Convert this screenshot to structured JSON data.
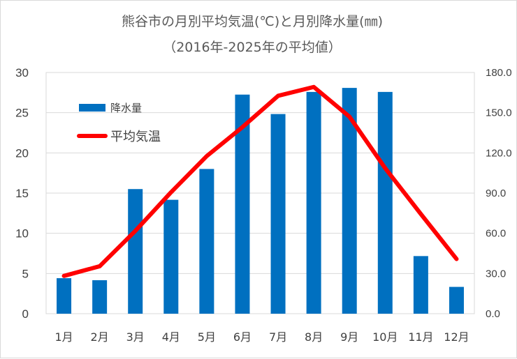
{
  "chart_data": {
    "type": "bar+line",
    "title": "熊谷市の月別平均気温(℃)と月別降水量(㎜)",
    "subtitle": "（2016年-2025年の平均値）",
    "categories": [
      "1月",
      "2月",
      "3月",
      "4月",
      "5月",
      "6月",
      "7月",
      "8月",
      "9月",
      "10月",
      "11月",
      "12月"
    ],
    "series": [
      {
        "name": "降水量",
        "type": "bar",
        "axis": "right",
        "color": "#0070c0",
        "values": [
          26.5,
          25.0,
          93.0,
          85.0,
          108.0,
          163.5,
          149.0,
          165.5,
          168.5,
          165.5,
          43.0,
          20.0
        ]
      },
      {
        "name": "平均気温",
        "type": "line",
        "axis": "left",
        "color": "#ff0000",
        "values": [
          4.7,
          5.9,
          10.3,
          15.1,
          19.6,
          23.2,
          27.1,
          28.2,
          24.5,
          18.1,
          12.4,
          6.8
        ]
      }
    ],
    "y_left": {
      "min": 0,
      "max": 30,
      "ticks": [
        "0",
        "5",
        "10",
        "15",
        "20",
        "25",
        "30"
      ]
    },
    "y_right": {
      "min": 0,
      "max": 180,
      "ticks": [
        "0.0",
        "30.0",
        "60.0",
        "90.0",
        "120.0",
        "150.0",
        "180.0"
      ]
    },
    "grid": true,
    "legend": "top-left"
  }
}
